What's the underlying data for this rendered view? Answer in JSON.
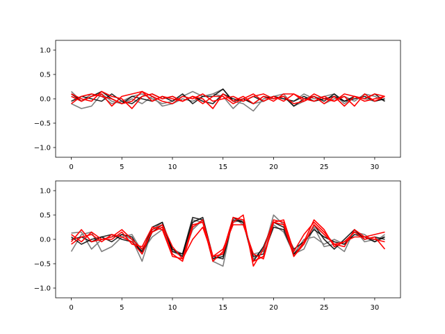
{
  "chart_data": [
    {
      "type": "line",
      "xlim": [
        -1.55,
        32.55
      ],
      "ylim": [
        -1.2,
        1.2
      ],
      "x_ticks": [
        0,
        5,
        10,
        15,
        20,
        25,
        30
      ],
      "y_ticks": [
        -1.0,
        -0.5,
        0.0,
        0.5,
        1.0
      ],
      "x_tick_labels": [
        "0",
        "5",
        "10",
        "15",
        "20",
        "25",
        "30"
      ],
      "y_tick_labels": [
        "−1.0",
        "−0.5",
        "0.0",
        "0.5",
        "1.0"
      ],
      "grid": false,
      "series_colors": {
        "gray": "#7f7f7f",
        "black": "#000000",
        "red": "#ff0000"
      },
      "series": [
        {
          "color": "gray",
          "values": [
            0.15,
            -0.05,
            0.1,
            0.05,
            -0.1,
            -0.05,
            0.05,
            0.1,
            0.0,
            -0.1,
            -0.05,
            0.05,
            0.15,
            0.05,
            0.1,
            0.2,
            -0.05,
            -0.1,
            -0.25,
            0.0,
            0.05,
            0.1,
            -0.15,
            -0.05,
            0.05,
            -0.1,
            0.0,
            0.05,
            -0.05,
            0.1,
            0.05,
            -0.05
          ]
        },
        {
          "color": "gray",
          "values": [
            -0.1,
            -0.2,
            -0.15,
            0.1,
            -0.05,
            -0.1,
            0.0,
            -0.1,
            0.05,
            -0.15,
            -0.1,
            0.0,
            -0.05,
            0.05,
            0.1,
            0.05,
            -0.2,
            0.0,
            -0.1,
            -0.05,
            0.05,
            0.0,
            -0.05,
            0.1,
            0.0,
            0.05,
            0.1,
            -0.1,
            0.05,
            0.0,
            -0.05,
            0.0
          ]
        },
        {
          "color": "black",
          "values": [
            0.1,
            -0.05,
            0.05,
            0.15,
            0.0,
            -0.1,
            0.05,
            0.0,
            -0.05,
            0.05,
            -0.05,
            0.1,
            -0.1,
            0.05,
            0.05,
            0.2,
            -0.05,
            0.0,
            -0.1,
            0.05,
            0.0,
            0.05,
            -0.15,
            0.0,
            0.05,
            -0.05,
            0.1,
            -0.05,
            0.05,
            0.0,
            0.1,
            -0.05
          ]
        },
        {
          "color": "black",
          "values": [
            -0.05,
            0.05,
            0.0,
            -0.05,
            0.1,
            -0.05,
            -0.1,
            0.05,
            0.1,
            0.0,
            0.05,
            -0.05,
            0.05,
            -0.05,
            -0.1,
            0.1,
            0.0,
            -0.05,
            0.05,
            -0.05,
            0.05,
            0.0,
            -0.05,
            0.05,
            -0.05,
            0.0,
            0.05,
            -0.05,
            0.0,
            0.05,
            -0.05,
            0.0
          ]
        },
        {
          "color": "red",
          "values": [
            0.05,
            -0.05,
            0.05,
            0.1,
            -0.15,
            0.05,
            0.1,
            0.15,
            -0.05,
            0.05,
            0.0,
            -0.05,
            0.05,
            0.0,
            -0.2,
            0.1,
            -0.05,
            0.05,
            -0.1,
            0.05,
            -0.05,
            0.1,
            0.1,
            -0.05,
            0.05,
            -0.1,
            0.05,
            -0.15,
            0.05,
            0.0,
            0.1,
            0.05
          ]
        },
        {
          "color": "red",
          "values": [
            -0.1,
            0.05,
            0.1,
            0.05,
            0.0,
            -0.1,
            -0.05,
            0.15,
            0.05,
            -0.05,
            -0.1,
            0.05,
            0.0,
            0.1,
            -0.05,
            0.0,
            0.05,
            -0.05,
            0.05,
            0.1,
            0.0,
            0.05,
            -0.1,
            -0.05,
            0.1,
            0.0,
            -0.05,
            0.05,
            -0.15,
            0.1,
            -0.05,
            0.05
          ]
        },
        {
          "color": "red",
          "values": [
            0.1,
            0.0,
            -0.05,
            0.15,
            0.05,
            0.0,
            -0.2,
            0.05,
            0.1,
            0.0,
            0.05,
            -0.05,
            0.05,
            -0.1,
            0.05,
            0.05,
            -0.1,
            0.0,
            0.1,
            -0.05,
            0.05,
            -0.05,
            0.1,
            0.0,
            -0.05,
            0.05,
            -0.05,
            0.1,
            0.05,
            -0.05,
            0.0,
            0.05
          ]
        }
      ]
    },
    {
      "type": "line",
      "xlim": [
        -1.55,
        32.55
      ],
      "ylim": [
        -1.2,
        1.2
      ],
      "x_ticks": [
        0,
        5,
        10,
        15,
        20,
        25,
        30
      ],
      "y_ticks": [
        -1.0,
        -0.5,
        0.0,
        0.5,
        1.0
      ],
      "x_tick_labels": [
        "0",
        "5",
        "10",
        "15",
        "20",
        "25",
        "30"
      ],
      "y_tick_labels": [
        "−1.0",
        "−0.5",
        "0.0",
        "0.5",
        "1.0"
      ],
      "grid": false,
      "series_colors": {
        "gray": "#7f7f7f",
        "black": "#000000",
        "red": "#ff0000"
      },
      "series": [
        {
          "color": "gray",
          "values": [
            0.13,
            0.15,
            -0.2,
            0.0,
            0.05,
            0.1,
            0.0,
            -0.45,
            0.2,
            0.35,
            -0.2,
            -0.3,
            0.4,
            0.35,
            -0.45,
            -0.55,
            0.45,
            0.3,
            -0.3,
            -0.25,
            0.5,
            0.3,
            -0.3,
            -0.2,
            0.25,
            -0.15,
            -0.1,
            -0.25,
            0.2,
            -0.05,
            0.0,
            0.05
          ]
        },
        {
          "color": "gray",
          "values": [
            -0.25,
            0.1,
            0.15,
            -0.25,
            -0.15,
            0.05,
            0.1,
            -0.25,
            0.05,
            0.2,
            -0.25,
            -0.35,
            0.2,
            0.4,
            -0.4,
            -0.3,
            0.35,
            0.4,
            -0.4,
            -0.2,
            0.3,
            0.15,
            -0.3,
            0.0,
            0.05,
            -0.1,
            0.0,
            -0.1,
            0.15,
            0.1,
            -0.05,
            0.1
          ]
        },
        {
          "color": "black",
          "values": [
            0.0,
            0.05,
            -0.05,
            0.05,
            0.1,
            0.0,
            -0.05,
            -0.25,
            0.25,
            0.35,
            -0.25,
            -0.3,
            0.45,
            0.4,
            -0.4,
            -0.35,
            0.45,
            0.35,
            -0.35,
            -0.3,
            0.25,
            0.2,
            -0.3,
            -0.1,
            0.3,
            0.0,
            -0.2,
            0.0,
            0.2,
            0.0,
            0.05,
            0.0
          ]
        },
        {
          "color": "black",
          "values": [
            0.05,
            -0.1,
            0.0,
            0.05,
            -0.05,
            0.1,
            0.05,
            -0.3,
            0.15,
            0.3,
            -0.2,
            -0.35,
            0.35,
            0.45,
            -0.35,
            -0.4,
            0.4,
            0.35,
            -0.45,
            -0.15,
            0.35,
            0.25,
            -0.2,
            -0.05,
            0.2,
            0.05,
            -0.05,
            -0.1,
            0.1,
            0.05,
            -0.05,
            0.05
          ]
        },
        {
          "color": "red",
          "values": [
            -0.05,
            0.2,
            -0.05,
            0.0,
            0.05,
            0.2,
            0.0,
            -0.2,
            0.15,
            0.25,
            -0.3,
            -0.45,
            0.25,
            0.4,
            -0.35,
            -0.3,
            0.35,
            0.5,
            -0.55,
            -0.2,
            0.4,
            0.35,
            -0.35,
            -0.05,
            0.4,
            0.2,
            -0.15,
            -0.05,
            0.05,
            0.05,
            0.1,
            0.15
          ]
        },
        {
          "color": "red",
          "values": [
            -0.1,
            0.05,
            0.1,
            -0.05,
            0.1,
            0.05,
            -0.05,
            -0.3,
            0.2,
            0.3,
            -0.15,
            -0.4,
            0.3,
            0.35,
            -0.45,
            -0.25,
            0.45,
            0.4,
            -0.45,
            -0.35,
            0.35,
            0.4,
            -0.25,
            0.1,
            0.35,
            0.15,
            -0.1,
            -0.05,
            0.15,
            0.0,
            0.05,
            -0.2
          ]
        },
        {
          "color": "red",
          "values": [
            0.1,
            -0.05,
            0.15,
            0.0,
            0.0,
            0.15,
            -0.1,
            -0.15,
            0.25,
            0.2,
            -0.35,
            -0.4,
            0.0,
            0.25,
            -0.35,
            -0.2,
            0.3,
            0.3,
            -0.3,
            -0.4,
            0.35,
            0.3,
            -0.35,
            -0.1,
            0.3,
            0.1,
            -0.1,
            -0.15,
            0.2,
            0.05,
            0.0,
            -0.05
          ]
        }
      ]
    }
  ]
}
